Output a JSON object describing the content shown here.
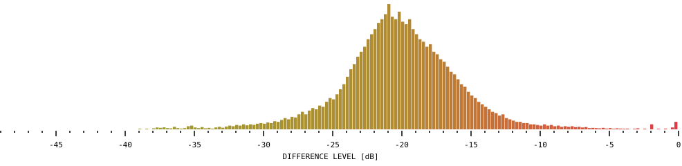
{
  "chart_data": {
    "type": "histogram",
    "x_label": "DIFFERENCE LEVEL [dB]",
    "xlim": [
      -49,
      0
    ],
    "ylim": [
      0,
      100
    ],
    "xticks": [
      -45,
      -40,
      -35,
      -30,
      -25,
      -20,
      -15,
      -10,
      -5,
      0
    ],
    "xminorticks": [
      -49,
      -48,
      -47,
      -46,
      -44,
      -43,
      -42,
      -41,
      -39,
      -38,
      -37,
      -36,
      -34,
      -33,
      -32,
      -31,
      -29,
      -28,
      -27,
      -26,
      -24,
      -23,
      -22,
      -21,
      -19,
      -18,
      -17,
      -16,
      -14,
      -13,
      -12,
      -11,
      -9,
      -8,
      -7,
      -6,
      -4,
      -3,
      -2,
      -1
    ],
    "gradient": [
      {
        "value": -40,
        "color": "#9c9e30"
      },
      {
        "value": -20,
        "color": "#b28a32"
      },
      {
        "value": -10,
        "color": "#d0623a"
      },
      {
        "value": 0,
        "color": "#e03848"
      }
    ],
    "bins": [
      -40,
      -39.75,
      -39.5,
      -39.25,
      -39,
      -38.75,
      -38.5,
      -38.25,
      -38,
      -37.75,
      -37.5,
      -37.25,
      -37,
      -36.75,
      -36.5,
      -36.25,
      -36,
      -35.75,
      -35.5,
      -35.25,
      -35,
      -34.75,
      -34.5,
      -34.25,
      -34,
      -33.75,
      -33.5,
      -33.25,
      -33,
      -32.75,
      -32.5,
      -32.25,
      -32,
      -31.75,
      -31.5,
      -31.25,
      -31,
      -30.75,
      -30.5,
      -30.25,
      -30,
      -29.75,
      -29.5,
      -29.25,
      -29,
      -28.75,
      -28.5,
      -28.25,
      -28,
      -27.75,
      -27.5,
      -27.25,
      -27,
      -26.75,
      -26.5,
      -26.25,
      -26,
      -25.75,
      -25.5,
      -25.25,
      -25,
      -24.75,
      -24.5,
      -24.25,
      -24,
      -23.75,
      -23.5,
      -23.25,
      -23,
      -22.75,
      -22.5,
      -22.25,
      -22,
      -21.75,
      -21.5,
      -21.25,
      -21,
      -20.75,
      -20.5,
      -20.25,
      -20,
      -19.75,
      -19.5,
      -19.25,
      -19,
      -18.75,
      -18.5,
      -18.25,
      -18,
      -17.75,
      -17.5,
      -17.25,
      -17,
      -16.75,
      -16.5,
      -16.25,
      -16,
      -15.75,
      -15.5,
      -15.25,
      -15,
      -14.75,
      -14.5,
      -14.25,
      -14,
      -13.75,
      -13.5,
      -13.25,
      -13,
      -12.75,
      -12.5,
      -12.25,
      -12,
      -11.75,
      -11.5,
      -11.25,
      -11,
      -10.75,
      -10.5,
      -10.25,
      -10,
      -9.75,
      -9.5,
      -9.25,
      -9,
      -8.75,
      -8.5,
      -8.25,
      -8,
      -7.75,
      -7.5,
      -7.25,
      -7,
      -6.75,
      -6.5,
      -6.25,
      -6,
      -5.75,
      -5.5,
      -5.25,
      -5,
      -4.75,
      -4.5,
      -4.25,
      -4,
      -3.75,
      -3.5,
      -3.25,
      -3,
      -2.75,
      -2.5,
      -2.25,
      -2,
      -1.75,
      -1.5,
      -1.25,
      -1,
      -0.75,
      -0.5,
      -0.25,
      0
    ],
    "values": [
      0,
      0,
      0,
      0,
      0.5,
      0,
      0.5,
      0,
      0.8,
      1.5,
      1.2,
      1.6,
      1,
      0.8,
      2,
      1,
      0.6,
      1,
      2.5,
      3,
      1.5,
      1,
      1.8,
      0.8,
      1.2,
      0.6,
      1.5,
      2,
      1.3,
      2.2,
      3,
      2.5,
      3.5,
      3,
      4,
      3.2,
      4,
      3.6,
      4.5,
      5,
      4.5,
      5.5,
      5,
      6.5,
      6,
      7.5,
      9,
      8,
      10,
      9.5,
      12,
      14,
      12,
      15,
      17,
      16,
      19,
      18,
      22,
      25,
      24,
      28,
      32,
      36,
      42,
      48,
      52,
      58,
      62,
      66,
      72,
      76,
      80,
      85,
      88,
      92,
      100,
      90,
      88,
      94,
      86,
      84,
      88,
      80,
      76,
      72,
      70,
      66,
      68,
      62,
      60,
      56,
      54,
      50,
      46,
      44,
      40,
      36,
      34,
      30,
      27,
      25,
      22,
      20,
      18,
      16,
      14,
      13,
      11,
      12,
      9,
      8,
      7,
      6,
      6,
      5,
      5,
      4,
      4,
      3.5,
      3,
      4,
      3,
      3.5,
      2.5,
      3,
      2,
      2.5,
      2,
      2.5,
      1.8,
      2,
      1.5,
      1.8,
      1,
      1.2,
      1,
      0.8,
      1.2,
      0.6,
      1,
      0.5,
      0.8,
      0.6,
      0.5,
      0.6,
      0,
      0.5,
      0.8,
      0,
      0.5,
      0,
      4,
      0,
      0.5,
      0,
      0.6,
      0,
      1.5,
      6
    ]
  }
}
